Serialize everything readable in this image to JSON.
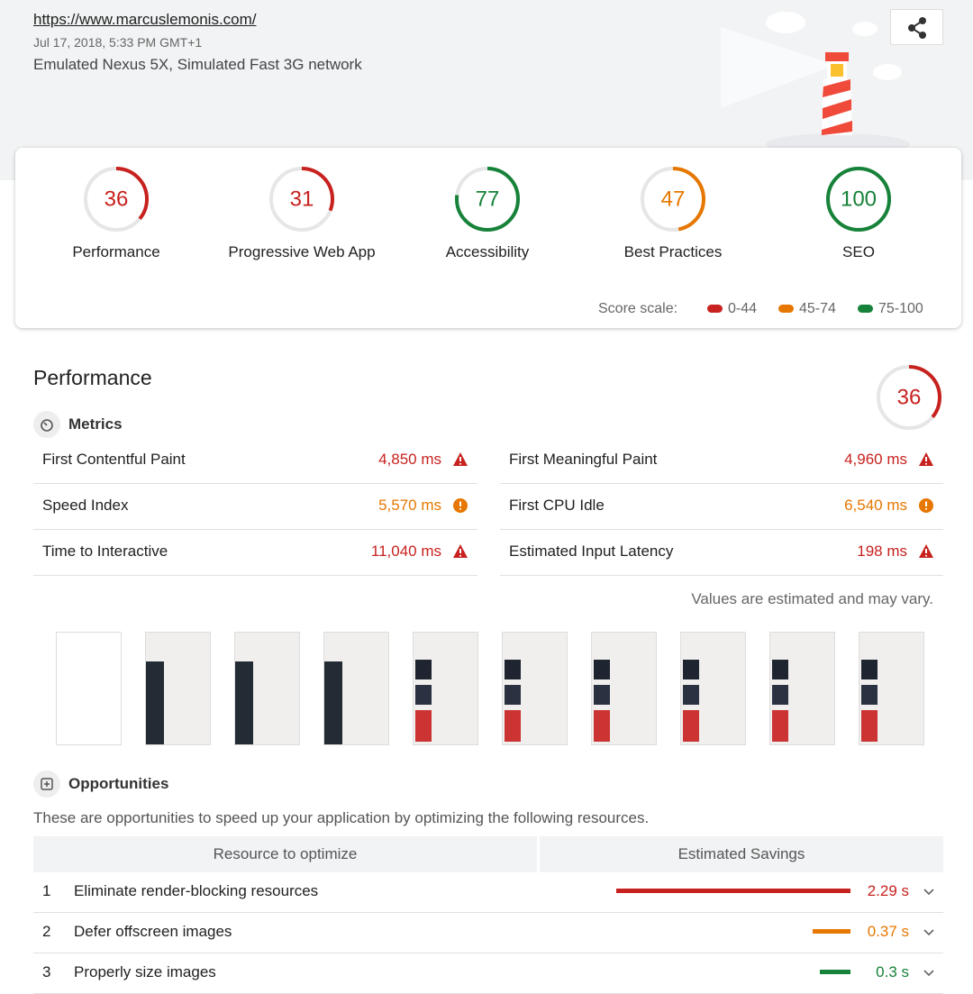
{
  "header": {
    "url": "https://www.marcuslemonis.com/",
    "date": "Jul 17, 2018, 5:33 PM GMT+1",
    "device": "Emulated Nexus 5X, Simulated Fast 3G network"
  },
  "scores": [
    {
      "label": "Performance",
      "score": 36,
      "color": "#c7221f"
    },
    {
      "label": "Progressive Web App",
      "score": 31,
      "color": "#c7221f"
    },
    {
      "label": "Accessibility",
      "score": 77,
      "color": "#178239"
    },
    {
      "label": "Best Practices",
      "score": 47,
      "color": "#e67700"
    },
    {
      "label": "SEO",
      "score": 100,
      "color": "#178239"
    }
  ],
  "score_scale": {
    "label": "Score scale:",
    "ranges": [
      {
        "label": "0-44",
        "color": "#c7221f"
      },
      {
        "label": "45-74",
        "color": "#e67700"
      },
      {
        "label": "75-100",
        "color": "#178239"
      }
    ]
  },
  "performance": {
    "title": "Performance",
    "score": 36,
    "color": "#c7221f",
    "metrics_title": "Metrics",
    "metrics": [
      {
        "name": "First Contentful Paint",
        "value": "4,850 ms",
        "color": "#c7221f",
        "icon": "fail"
      },
      {
        "name": "First Meaningful Paint",
        "value": "4,960 ms",
        "color": "#c7221f",
        "icon": "fail"
      },
      {
        "name": "Speed Index",
        "value": "5,570 ms",
        "color": "#e67700",
        "icon": "average"
      },
      {
        "name": "First CPU Idle",
        "value": "6,540 ms",
        "color": "#e67700",
        "icon": "average"
      },
      {
        "name": "Time to Interactive",
        "value": "11,040 ms",
        "color": "#c7221f",
        "icon": "fail"
      },
      {
        "name": "Estimated Input Latency",
        "value": "198 ms",
        "color": "#c7221f",
        "icon": "fail"
      }
    ],
    "note": "Values are estimated and may vary."
  },
  "opportunities": {
    "title": "Opportunities",
    "description": "These are opportunities to speed up your application by optimizing the following resources.",
    "columns": [
      "Resource to optimize",
      "Estimated Savings"
    ],
    "rows": [
      {
        "index": 1,
        "name": "Eliminate render-blocking resources",
        "savings": 2.29,
        "savings_label": "2.29 s",
        "color": "#c7221f"
      },
      {
        "index": 2,
        "name": "Defer offscreen images",
        "savings": 0.37,
        "savings_label": "0.37 s",
        "color": "#e67700"
      },
      {
        "index": 3,
        "name": "Properly size images",
        "savings": 0.3,
        "savings_label": "0.3 s",
        "color": "#178239"
      }
    ]
  }
}
